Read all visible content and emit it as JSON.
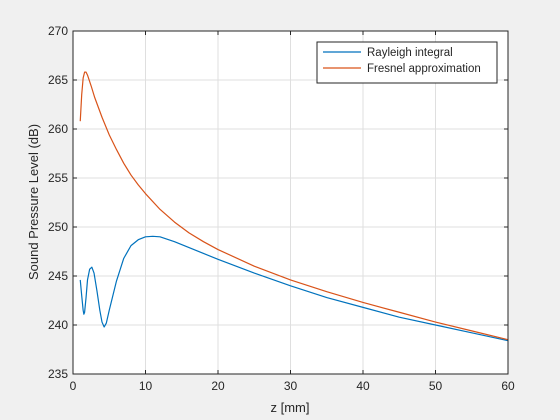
{
  "chart_data": {
    "type": "line",
    "xlabel": "z [mm]",
    "ylabel": "Sound Pressure Level (dB)",
    "xlim": [
      0,
      60
    ],
    "ylim": [
      235,
      270
    ],
    "xticks": [
      0,
      10,
      20,
      30,
      40,
      50,
      60
    ],
    "yticks": [
      235,
      240,
      245,
      250,
      255,
      260,
      265,
      270
    ],
    "grid": true,
    "legend_position": "top-right",
    "series": [
      {
        "name": "Rayleigh integral",
        "color": "#0072bd",
        "points": [
          [
            1.0,
            244.6
          ],
          [
            1.2,
            243.0
          ],
          [
            1.4,
            241.5
          ],
          [
            1.5,
            241.1
          ],
          [
            1.6,
            241.3
          ],
          [
            1.8,
            242.8
          ],
          [
            2.0,
            244.6
          ],
          [
            2.3,
            245.7
          ],
          [
            2.6,
            245.9
          ],
          [
            2.9,
            245.3
          ],
          [
            3.3,
            243.5
          ],
          [
            3.7,
            241.5
          ],
          [
            4.0,
            240.3
          ],
          [
            4.3,
            239.8
          ],
          [
            4.6,
            240.2
          ],
          [
            5.0,
            241.5
          ],
          [
            6.0,
            244.5
          ],
          [
            7.0,
            246.8
          ],
          [
            8.0,
            248.1
          ],
          [
            9.0,
            248.7
          ],
          [
            10.0,
            249.0
          ],
          [
            11.0,
            249.05
          ],
          [
            12.0,
            249.0
          ],
          [
            14.0,
            248.5
          ],
          [
            16.0,
            247.9
          ],
          [
            18.0,
            247.3
          ],
          [
            20.0,
            246.7
          ],
          [
            25.0,
            245.3
          ],
          [
            30.0,
            244.0
          ],
          [
            35.0,
            242.8
          ],
          [
            40.0,
            241.8
          ],
          [
            45.0,
            240.8
          ],
          [
            50.0,
            240.0
          ],
          [
            55.0,
            239.2
          ],
          [
            60.0,
            238.4
          ]
        ]
      },
      {
        "name": "Fresnel approximation",
        "color": "#d95319",
        "points": [
          [
            1.0,
            260.8
          ],
          [
            1.2,
            263.5
          ],
          [
            1.4,
            265.2
          ],
          [
            1.6,
            265.8
          ],
          [
            1.8,
            265.8
          ],
          [
            2.0,
            265.5
          ],
          [
            2.5,
            264.4
          ],
          [
            3.0,
            263.2
          ],
          [
            4.0,
            261.2
          ],
          [
            5.0,
            259.4
          ],
          [
            6.0,
            257.9
          ],
          [
            7.0,
            256.5
          ],
          [
            8.0,
            255.3
          ],
          [
            9.0,
            254.3
          ],
          [
            10.0,
            253.4
          ],
          [
            12.0,
            251.8
          ],
          [
            14.0,
            250.5
          ],
          [
            16.0,
            249.4
          ],
          [
            18.0,
            248.5
          ],
          [
            20.0,
            247.7
          ],
          [
            25.0,
            246.0
          ],
          [
            30.0,
            244.6
          ],
          [
            35.0,
            243.4
          ],
          [
            40.0,
            242.3
          ],
          [
            45.0,
            241.3
          ],
          [
            50.0,
            240.3
          ],
          [
            55.0,
            239.4
          ],
          [
            60.0,
            238.5
          ]
        ]
      }
    ]
  }
}
